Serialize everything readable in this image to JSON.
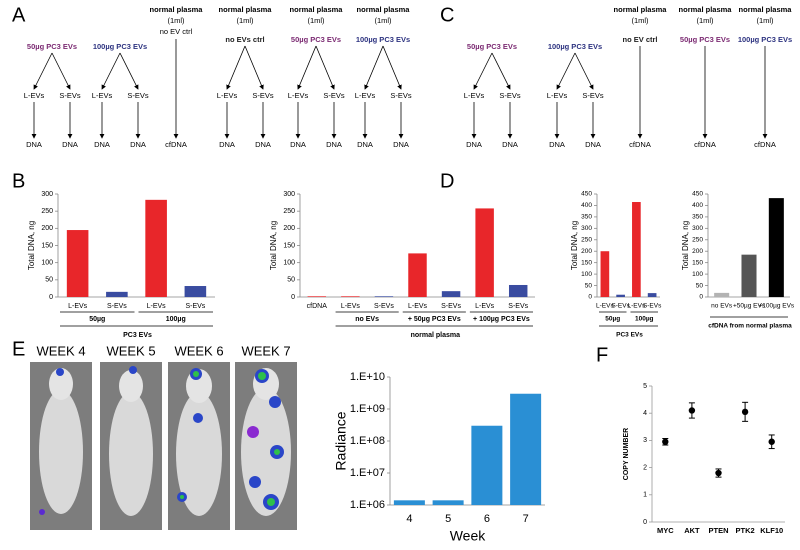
{
  "panel_labels": [
    "A",
    "B",
    "C",
    "D",
    "E",
    "F"
  ],
  "diagrams": [
    {
      "groups": [
        {
          "source": "50µg PC3 EVs",
          "color": "#7b2a72",
          "branches": [
            "L-EVs",
            "S-EVs"
          ],
          "leaves": [
            "DNA",
            "DNA"
          ]
        },
        {
          "source": "100µg PC3 EVs",
          "color": "#2d3380",
          "branches": [
            "L-EVs",
            "S-EVs"
          ],
          "leaves": [
            "DNA",
            "DNA"
          ]
        },
        {
          "header": [
            "normal plasma",
            "(1ml)",
            "no EV ctrl"
          ],
          "leaves": [
            "cfDNA"
          ]
        },
        {
          "header": [
            "normal plasma",
            "(1ml)"
          ],
          "source": "no EVs ctrl",
          "color": "#222222",
          "branches": [
            "L-EVs",
            "S-EVs"
          ],
          "leaves": [
            "DNA",
            "DNA"
          ]
        },
        {
          "header": [
            "normal plasma",
            "(1ml)"
          ],
          "source": "50µg PC3 EVs",
          "color": "#7b2a72",
          "branches": [
            "L-EVs",
            "S-EVs"
          ],
          "leaves": [
            "DNA",
            "DNA"
          ]
        },
        {
          "header": [
            "normal plasma",
            "(1ml)"
          ],
          "source": "100µg PC3 EVs",
          "color": "#2d3380",
          "branches": [
            "L-EVs",
            "S-EVs"
          ],
          "leaves": [
            "DNA",
            "DNA"
          ]
        }
      ]
    },
    {
      "groups": [
        {
          "source": "50µg PC3 EVs",
          "color": "#7b2a72",
          "branches": [
            "L-EVs",
            "S-EVs"
          ],
          "leaves": [
            "DNA",
            "DNA"
          ]
        },
        {
          "source": "100µg PC3 EVs",
          "color": "#2d3380",
          "branches": [
            "L-EVs",
            "S-EVs"
          ],
          "leaves": [
            "DNA",
            "DNA"
          ]
        },
        {
          "header": [
            "normal plasma",
            "(1ml)"
          ],
          "source": "no EV ctrl",
          "color": "#222222",
          "leaves": [
            "cfDNA"
          ]
        },
        {
          "header": [
            "normal plasma",
            "(1ml)"
          ],
          "source": "50µg PC3 EVs",
          "color": "#7b2a72",
          "leaves": [
            "cfDNA"
          ]
        },
        {
          "header": [
            "normal plasma",
            "(1ml)"
          ],
          "source": "100µg PC3 EVs",
          "color": "#2d3380",
          "leaves": [
            "cfDNA"
          ]
        }
      ]
    }
  ],
  "images": {
    "labels": [
      "WEEK 4",
      "WEEK 5",
      "WEEK 6",
      "WEEK 7"
    ]
  },
  "chart_data": [
    {
      "type": "bar",
      "ylabel": "Total DNA, ng",
      "ylim": [
        0,
        300
      ],
      "yticks": [
        0,
        50,
        100,
        150,
        200,
        250,
        300
      ],
      "groups": [
        {
          "label": "50µg",
          "categories": [
            "L-EVs",
            "S-EVs"
          ],
          "values": [
            195,
            15
          ],
          "colors": [
            "#e8262a",
            "#3a4ca0"
          ]
        },
        {
          "label": "100µg",
          "categories": [
            "L-EVs",
            "S-EVs"
          ],
          "values": [
            283,
            32
          ],
          "colors": [
            "#e8262a",
            "#3a4ca0"
          ]
        }
      ],
      "xlabel": "PC3 EVs"
    },
    {
      "type": "bar",
      "ylabel": "Total DNA, ng",
      "ylim": [
        0,
        300
      ],
      "yticks": [
        0,
        50,
        100,
        150,
        200,
        250,
        300
      ],
      "groups": [
        {
          "categories": [
            "cfDNA"
          ],
          "values": [
            2
          ],
          "colors": [
            "#e8262a"
          ]
        },
        {
          "label": "no EVs",
          "categories": [
            "L-EVs",
            "S-EVs"
          ],
          "values": [
            2,
            2
          ],
          "colors": [
            "#e8262a",
            "#3a4ca0"
          ]
        },
        {
          "label": "+ 50µg PC3 EVs",
          "categories": [
            "L-EVs",
            "S-EVs"
          ],
          "values": [
            127,
            17
          ],
          "colors": [
            "#e8262a",
            "#3a4ca0"
          ]
        },
        {
          "label": "+ 100µg PC3 EVs",
          "categories": [
            "L-EVs",
            "S-EVs"
          ],
          "values": [
            258,
            35
          ],
          "colors": [
            "#e8262a",
            "#3a4ca0"
          ]
        }
      ],
      "xlabel": "normal plasma"
    },
    {
      "type": "bar",
      "ylabel": "Total DNA, ng",
      "ylim": [
        0,
        450
      ],
      "yticks": [
        0,
        50,
        100,
        150,
        200,
        250,
        300,
        350,
        400,
        450
      ],
      "groups": [
        {
          "label": "50µg",
          "categories": [
            "L-EVs",
            "S-EVs"
          ],
          "values": [
            200,
            10
          ],
          "colors": [
            "#e8262a",
            "#3a4ca0"
          ]
        },
        {
          "label": "100µg",
          "categories": [
            "L-EVs",
            "S-EVs"
          ],
          "values": [
            415,
            17
          ],
          "colors": [
            "#e8262a",
            "#3a4ca0"
          ]
        }
      ],
      "xlabel": "PC3 EVs"
    },
    {
      "type": "bar",
      "ylabel": "Total DNA, ng",
      "ylim": [
        0,
        450
      ],
      "yticks": [
        0,
        50,
        100,
        150,
        200,
        250,
        300,
        350,
        400,
        450
      ],
      "categories": [
        "no EVs",
        "+50µg EVs",
        "+100µg EVs"
      ],
      "values": [
        18,
        185,
        432
      ],
      "colors": [
        "#b3b3b3",
        "#555555",
        "#000000"
      ],
      "xlabel": "cfDNA from normal plasma"
    },
    {
      "type": "bar",
      "log": true,
      "ylabel": "Radiance",
      "xlabel": "Week",
      "categories": [
        "4",
        "5",
        "6",
        "7"
      ],
      "values": [
        1400000,
        1400000,
        300000000,
        3000000000
      ],
      "color": "#2a8fd4",
      "ylim": [
        1000000,
        10000000000
      ],
      "yticks": [
        {
          "value": 1000000,
          "label": "1.E+06"
        },
        {
          "value": 10000000,
          "label": "1.E+07"
        },
        {
          "value": 100000000,
          "label": "1.E+08"
        },
        {
          "value": 1000000000,
          "label": "1.E+09"
        },
        {
          "value": 10000000000,
          "label": "1.E+10"
        }
      ]
    },
    {
      "type": "errorbar",
      "ylabel": "COPY NUMBER",
      "categories": [
        "MYC",
        "AKT",
        "PTEN",
        "PTK2",
        "KLF10"
      ],
      "values": [
        2.95,
        4.1,
        1.8,
        4.05,
        2.95
      ],
      "errors": [
        0.12,
        0.28,
        0.15,
        0.35,
        0.25
      ],
      "color": "#000000",
      "ylim": [
        0,
        5
      ],
      "yticks": [
        0,
        1,
        2,
        3,
        4,
        5
      ]
    }
  ]
}
